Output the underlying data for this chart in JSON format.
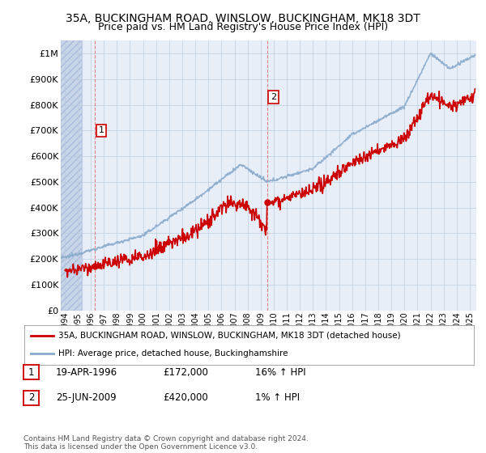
{
  "title": "35A, BUCKINGHAM ROAD, WINSLOW, BUCKINGHAM, MK18 3DT",
  "subtitle": "Price paid vs. HM Land Registry's House Price Index (HPI)",
  "ylim": [
    0,
    1050000
  ],
  "yticks": [
    0,
    100000,
    200000,
    300000,
    400000,
    500000,
    600000,
    700000,
    800000,
    900000,
    1000000
  ],
  "ytick_labels": [
    "£0",
    "£100K",
    "£200K",
    "£300K",
    "£400K",
    "£500K",
    "£600K",
    "£700K",
    "£800K",
    "£900K",
    "£1M"
  ],
  "xlim_start": 1993.7,
  "xlim_end": 2025.5,
  "xticks": [
    1994,
    1995,
    1996,
    1997,
    1998,
    1999,
    2000,
    2001,
    2002,
    2003,
    2004,
    2005,
    2006,
    2007,
    2008,
    2009,
    2010,
    2011,
    2012,
    2013,
    2014,
    2015,
    2016,
    2017,
    2018,
    2019,
    2020,
    2021,
    2022,
    2023,
    2024,
    2025
  ],
  "purchase1_x": 1996.3,
  "purchase1_y": 172000,
  "purchase1_label": "1",
  "purchase2_x": 2009.48,
  "purchase2_y": 420000,
  "purchase2_label": "2",
  "red_line_color": "#cc0000",
  "blue_line_color": "#88aacc",
  "dot_color": "#cc0000",
  "vline_color": "#dd6666",
  "background_color": "#ffffff",
  "plot_bg_color": "#e8eef8",
  "hatch_color": "#c8d4e8",
  "legend_entry1": "35A, BUCKINGHAM ROAD, WINSLOW, BUCKINGHAM, MK18 3DT (detached house)",
  "legend_entry2": "HPI: Average price, detached house, Buckinghamshire",
  "table_row1": [
    "1",
    "19-APR-1996",
    "£172,000",
    "16% ↑ HPI"
  ],
  "table_row2": [
    "2",
    "25-JUN-2009",
    "£420,000",
    "1% ↑ HPI"
  ],
  "footer": "Contains HM Land Registry data © Crown copyright and database right 2024.\nThis data is licensed under the Open Government Licence v3.0.",
  "title_fontsize": 10,
  "subtitle_fontsize": 9
}
